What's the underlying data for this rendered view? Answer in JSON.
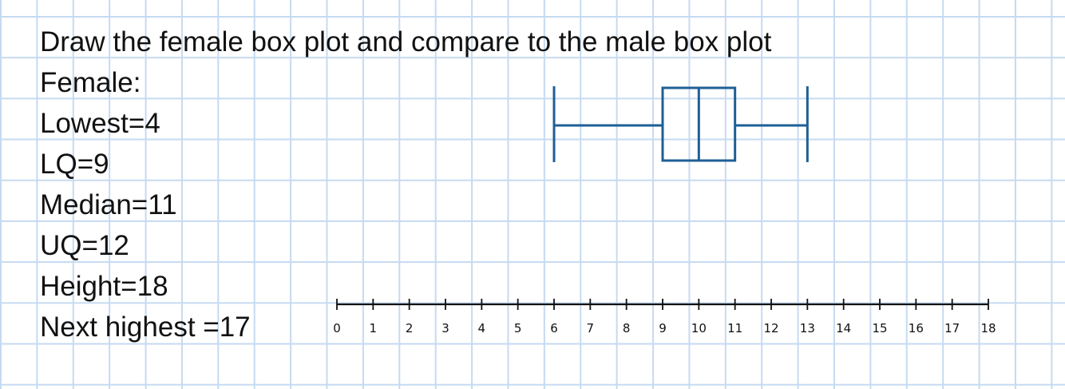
{
  "title": "Draw the female box plot and compare to the male box plot",
  "lines": {
    "female": "Female:",
    "lowest": "Lowest=4",
    "lq": "LQ=9",
    "median": "Median=11",
    "uq": "UQ=12",
    "height": "Height=18",
    "next_highest": "Next highest =17"
  },
  "colors": {
    "box": "#1f5f95",
    "axis": "#111111",
    "grid": "#c6daf1"
  },
  "chart_data": {
    "type": "box",
    "xlim": [
      0,
      18
    ],
    "ticks": [
      0,
      1,
      2,
      3,
      4,
      5,
      6,
      7,
      8,
      9,
      10,
      11,
      12,
      13,
      14,
      15,
      16,
      17,
      18
    ],
    "tick_labels": [
      "0",
      "1",
      "2",
      "3",
      "4",
      "5",
      "6",
      "7",
      "8",
      "9",
      "10",
      "11",
      "12",
      "13",
      "14",
      "15",
      "16",
      "17",
      "18"
    ],
    "box": {
      "min": 6,
      "q1": 9,
      "median": 10,
      "q3": 11,
      "max": 13
    }
  }
}
